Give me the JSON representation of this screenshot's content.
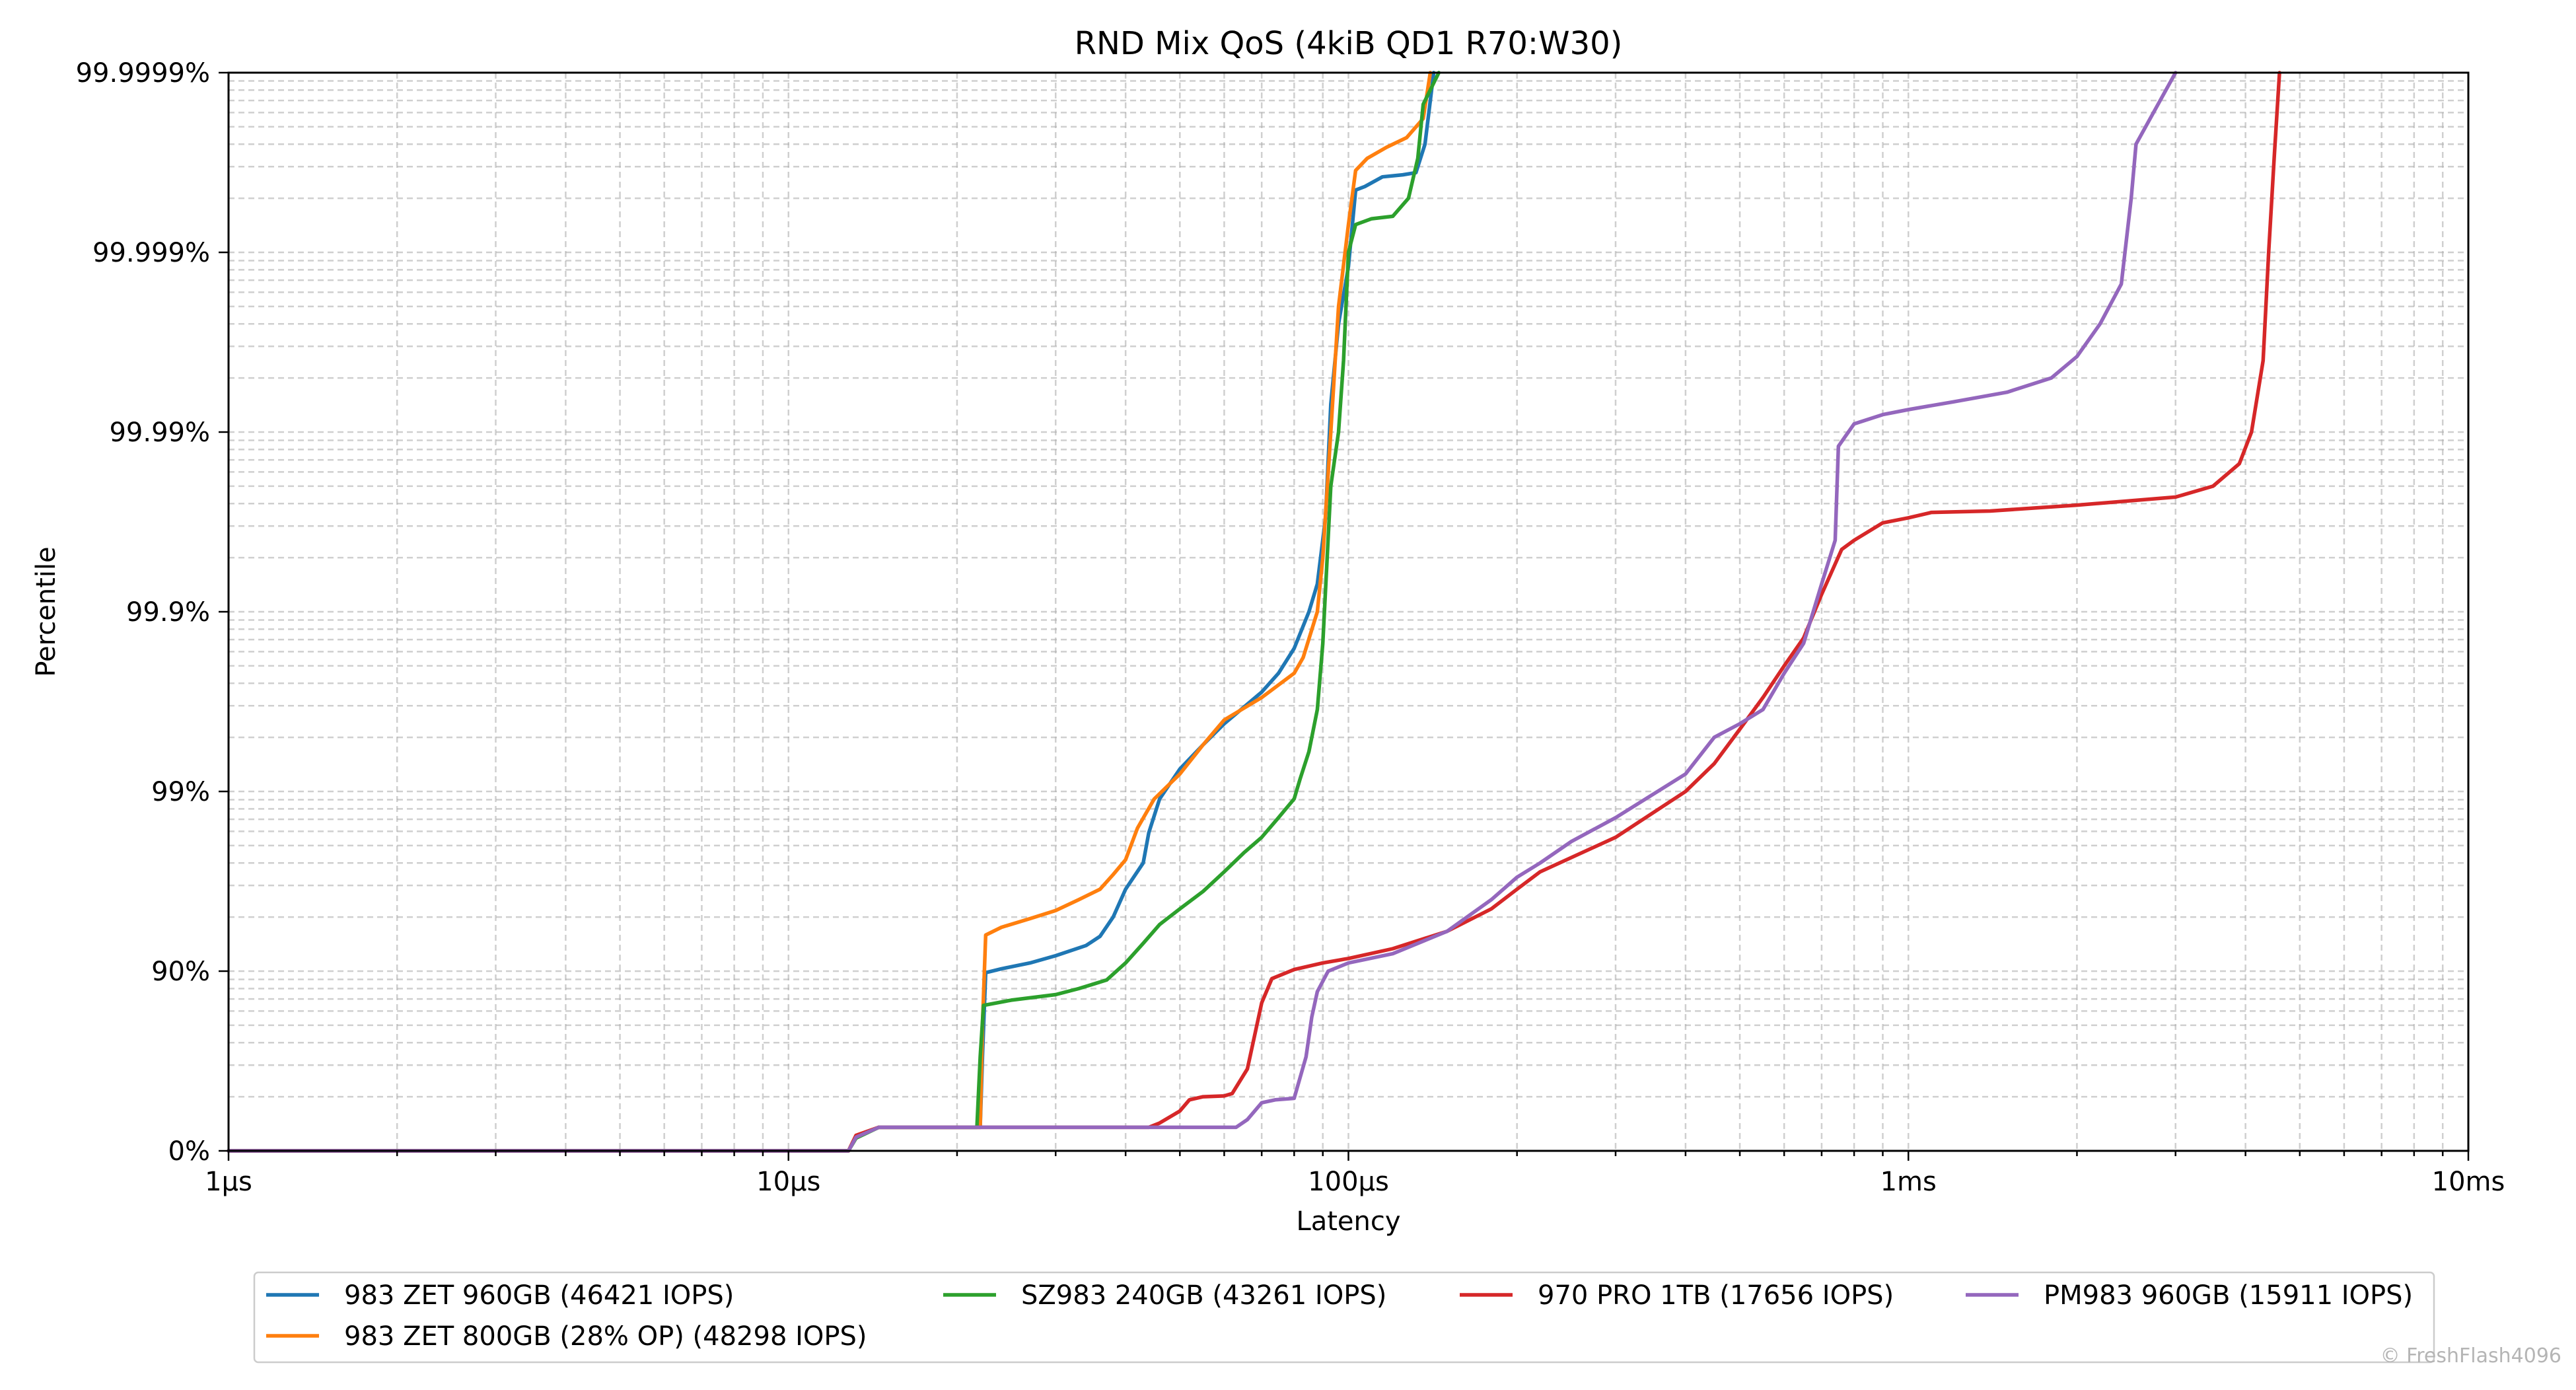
{
  "chart_data": {
    "type": "line",
    "title": "RND Mix QoS (4kiB QD1 R70:W30)",
    "xlabel": "Latency",
    "ylabel": "Percentile",
    "x_scale": "log",
    "x_unit": "µs",
    "y_scale": "nines (log of 1 - percentile)",
    "xlim": [
      1,
      10000
    ],
    "ylim_percentile": [
      0,
      99.9999
    ],
    "x_ticks": [
      {
        "value": 1,
        "label": "1µs"
      },
      {
        "value": 10,
        "label": "10µs"
      },
      {
        "value": 100,
        "label": "100µs"
      },
      {
        "value": 1000,
        "label": "1ms"
      },
      {
        "value": 10000,
        "label": "10ms"
      }
    ],
    "y_ticks": [
      {
        "value": 0,
        "label": "0%"
      },
      {
        "value": 90,
        "label": "90%"
      },
      {
        "value": 99,
        "label": "99%"
      },
      {
        "value": 99.9,
        "label": "99.9%"
      },
      {
        "value": 99.99,
        "label": "99.99%"
      },
      {
        "value": 99.999,
        "label": "99.999%"
      },
      {
        "value": 99.9999,
        "label": "99.9999%"
      }
    ],
    "grid": true,
    "legend_position": "bottom",
    "series": [
      {
        "name": "983 ZET 960GB (46421 IOPS)",
        "color": "#1f77b4",
        "points": [
          [
            1,
            0
          ],
          [
            12.8,
            0
          ],
          [
            13.2,
            17
          ],
          [
            14.5,
            26
          ],
          [
            20,
            26
          ],
          [
            22,
            26
          ],
          [
            22.2,
            70
          ],
          [
            22.5,
            89.8
          ],
          [
            24,
            90.3
          ],
          [
            27,
            91
          ],
          [
            30,
            91.8
          ],
          [
            34,
            92.8
          ],
          [
            36,
            93.6
          ],
          [
            38,
            95
          ],
          [
            40,
            96.5
          ],
          [
            43,
            97.5
          ],
          [
            44,
            98.3
          ],
          [
            46,
            98.9
          ],
          [
            50,
            99.25
          ],
          [
            55,
            99.45
          ],
          [
            60,
            99.58
          ],
          [
            65,
            99.66
          ],
          [
            70,
            99.72
          ],
          [
            75,
            99.78
          ],
          [
            80,
            99.84
          ],
          [
            85,
            99.9
          ],
          [
            88,
            99.93
          ],
          [
            91,
            99.97
          ],
          [
            93,
            99.993
          ],
          [
            96,
            99.9975
          ],
          [
            100,
            99.9988
          ],
          [
            103,
            99.99955
          ],
          [
            107,
            99.99957
          ],
          [
            115,
            99.99962
          ],
          [
            125,
            99.99963
          ],
          [
            132,
            99.99964
          ],
          [
            137,
            99.99975
          ],
          [
            142,
            99.9999
          ]
        ]
      },
      {
        "name": "983 ZET 800GB (28% OP) (48298 IOPS)",
        "color": "#ff7f0e",
        "points": [
          [
            1,
            0
          ],
          [
            12.8,
            0
          ],
          [
            13.2,
            18
          ],
          [
            14.5,
            26
          ],
          [
            20,
            26
          ],
          [
            22,
            26
          ],
          [
            22.2,
            80
          ],
          [
            22.5,
            93.7
          ],
          [
            24,
            94.3
          ],
          [
            27,
            94.9
          ],
          [
            30,
            95.4
          ],
          [
            33,
            96
          ],
          [
            36,
            96.5
          ],
          [
            38,
            97.1
          ],
          [
            40,
            97.6
          ],
          [
            42,
            98.4
          ],
          [
            45,
            98.9
          ],
          [
            50,
            99.2
          ],
          [
            55,
            99.45
          ],
          [
            60,
            99.6
          ],
          [
            70,
            99.7
          ],
          [
            80,
            99.78
          ],
          [
            83,
            99.82
          ],
          [
            88,
            99.9
          ],
          [
            90,
            99.95
          ],
          [
            93,
            99.99
          ],
          [
            96,
            99.998
          ],
          [
            100,
            99.9993
          ],
          [
            103,
            99.99965
          ],
          [
            108,
            99.9997
          ],
          [
            117,
            99.99974
          ],
          [
            127,
            99.99977
          ],
          [
            136,
            99.99982
          ],
          [
            140,
            99.9999
          ]
        ]
      },
      {
        "name": "SZ983 240GB (43261 IOPS)",
        "color": "#2ca02c",
        "points": [
          [
            1,
            0
          ],
          [
            12.8,
            0
          ],
          [
            13.2,
            15
          ],
          [
            14.5,
            26
          ],
          [
            21,
            26
          ],
          [
            21.7,
            26
          ],
          [
            22,
            70
          ],
          [
            22.3,
            84.5
          ],
          [
            25,
            85.5
          ],
          [
            30,
            86.5
          ],
          [
            33,
            87.5
          ],
          [
            37,
            88.8
          ],
          [
            40,
            91
          ],
          [
            43,
            93
          ],
          [
            46,
            94.5
          ],
          [
            50,
            95.5
          ],
          [
            55,
            96.4
          ],
          [
            60,
            97.2
          ],
          [
            65,
            97.8
          ],
          [
            70,
            98.2
          ],
          [
            75,
            98.6
          ],
          [
            80,
            98.9
          ],
          [
            82,
            99.15
          ],
          [
            85,
            99.4
          ],
          [
            88,
            99.65
          ],
          [
            90,
            99.85
          ],
          [
            93,
            99.98
          ],
          [
            96,
            99.99
          ],
          [
            98,
            99.996
          ],
          [
            100,
            99.999
          ],
          [
            103,
            99.9993
          ],
          [
            110,
            99.99935
          ],
          [
            120,
            99.99937
          ],
          [
            128,
            99.9995
          ],
          [
            133,
            99.9997
          ],
          [
            136,
            99.99985
          ],
          [
            145,
            99.9999
          ]
        ]
      },
      {
        "name": "970 PRO 1TB (17656 IOPS)",
        "color": "#d62728",
        "points": [
          [
            1,
            0
          ],
          [
            12.8,
            0
          ],
          [
            13.2,
            18
          ],
          [
            14.5,
            26
          ],
          [
            20,
            26
          ],
          [
            44,
            26
          ],
          [
            46,
            30
          ],
          [
            50,
            40
          ],
          [
            52,
            48
          ],
          [
            55,
            50
          ],
          [
            60,
            50.5
          ],
          [
            62,
            52
          ],
          [
            66,
            65
          ],
          [
            70,
            85
          ],
          [
            73,
            89
          ],
          [
            80,
            90.2
          ],
          [
            90,
            91
          ],
          [
            100,
            91.5
          ],
          [
            120,
            92.5
          ],
          [
            150,
            94
          ],
          [
            180,
            95.5
          ],
          [
            200,
            96.5
          ],
          [
            220,
            97.2
          ],
          [
            300,
            98.2
          ],
          [
            400,
            99
          ],
          [
            450,
            99.3
          ],
          [
            500,
            99.55
          ],
          [
            550,
            99.7
          ],
          [
            600,
            99.8
          ],
          [
            650,
            99.86
          ],
          [
            700,
            99.92
          ],
          [
            760,
            99.955
          ],
          [
            800,
            99.96
          ],
          [
            900,
            99.968
          ],
          [
            1000,
            99.97
          ],
          [
            1100,
            99.972
          ],
          [
            1400,
            99.9725
          ],
          [
            2000,
            99.9745
          ],
          [
            3000,
            99.977
          ],
          [
            3500,
            99.98
          ],
          [
            3900,
            99.985
          ],
          [
            4100,
            99.99
          ],
          [
            4300,
            99.996
          ],
          [
            4400,
            99.999
          ],
          [
            4500,
            99.9997
          ],
          [
            4600,
            99.9999
          ]
        ]
      },
      {
        "name": "PM983 960GB (15911 IOPS)",
        "color": "#9467bd",
        "points": [
          [
            1,
            0
          ],
          [
            12.8,
            0
          ],
          [
            13.2,
            16
          ],
          [
            14.5,
            26
          ],
          [
            20,
            26
          ],
          [
            63,
            26
          ],
          [
            66,
            33
          ],
          [
            70,
            46
          ],
          [
            74,
            48
          ],
          [
            80,
            49
          ],
          [
            84,
            70
          ],
          [
            86,
            82
          ],
          [
            88,
            87
          ],
          [
            92,
            90
          ],
          [
            100,
            91
          ],
          [
            120,
            92
          ],
          [
            150,
            94
          ],
          [
            180,
            96
          ],
          [
            200,
            97
          ],
          [
            220,
            97.5
          ],
          [
            250,
            98.1
          ],
          [
            300,
            98.6
          ],
          [
            400,
            99.2
          ],
          [
            450,
            99.5
          ],
          [
            500,
            99.58
          ],
          [
            550,
            99.65
          ],
          [
            600,
            99.78
          ],
          [
            650,
            99.85
          ],
          [
            700,
            99.93
          ],
          [
            740,
            99.96
          ],
          [
            750,
            99.988
          ],
          [
            800,
            99.991
          ],
          [
            900,
            99.992
          ],
          [
            1000,
            99.9925
          ],
          [
            1200,
            99.9932
          ],
          [
            1500,
            99.994
          ],
          [
            1800,
            99.995
          ],
          [
            2000,
            99.9962
          ],
          [
            2200,
            99.9975
          ],
          [
            2400,
            99.9985
          ],
          [
            2500,
            99.9995
          ],
          [
            2550,
            99.99975
          ],
          [
            3000,
            99.9999
          ]
        ]
      }
    ]
  },
  "copyright": "© FreshFlash4096"
}
